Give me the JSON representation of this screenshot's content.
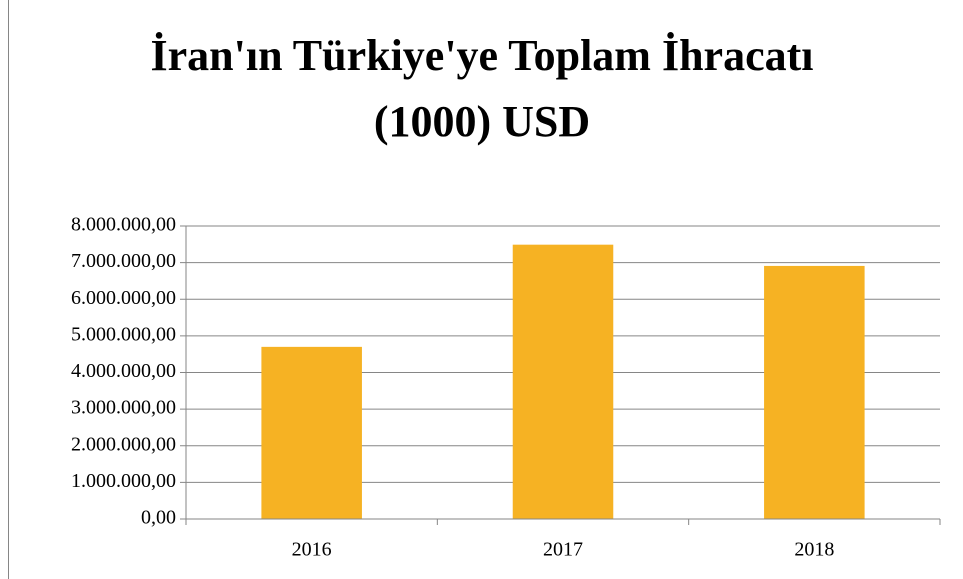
{
  "chart_data": {
    "type": "bar",
    "title": [
      "İran'ın Türkiye'ye Toplam İhracatı",
      "(1000) USD"
    ],
    "categories": [
      "2016",
      "2017",
      "2018"
    ],
    "values": [
      4700000,
      7490000,
      6910000
    ],
    "color": "#f6b223",
    "ylim": [
      0,
      8000000
    ],
    "yticks": [
      {
        "value": 0,
        "label": "0,00"
      },
      {
        "value": 1000000,
        "label": "1.000.000,00"
      },
      {
        "value": 2000000,
        "label": "2.000.000,00"
      },
      {
        "value": 3000000,
        "label": "3.000.000,00"
      },
      {
        "value": 4000000,
        "label": "4.000.000,00"
      },
      {
        "value": 5000000,
        "label": "5.000.000,00"
      },
      {
        "value": 6000000,
        "label": "6.000.000,00"
      },
      {
        "value": 7000000,
        "label": "7.000.000,00"
      },
      {
        "value": 8000000,
        "label": "8.000.000,00"
      }
    ],
    "grid": true
  }
}
